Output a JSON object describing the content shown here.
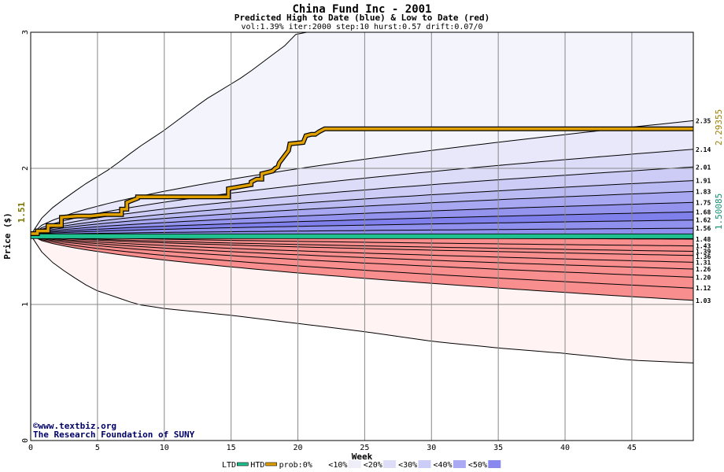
{
  "chart_data": {
    "type": "area",
    "title": "China Fund Inc - 2001",
    "subtitle": "Predicted High to Date (blue) &  Low to Date (red)",
    "params": "vol:1.39% iter:2000 step:10 hurst:0.57 drift:0.07/0",
    "xlabel": "Week",
    "ylabel": "Price ($)",
    "xlim": [
      0,
      49.6
    ],
    "ylim": [
      0,
      3
    ],
    "xticks": [
      "0",
      "5",
      "10",
      "15",
      "20",
      "25",
      "30",
      "35",
      "40",
      "45"
    ],
    "yticks": [
      "0",
      "1",
      "2",
      "3"
    ],
    "grid": true,
    "start_price": 1.51,
    "start_price_label": "1.51",
    "current_high": 2.29355,
    "current_high_label": "2.29355",
    "current_low": 1.50085,
    "current_low_label": "1.50085",
    "high_band_end_labels": [
      "2.35",
      "2.14",
      "2.01",
      "1.91",
      "1.83",
      "1.75",
      "1.68",
      "1.62",
      "1.56"
    ],
    "high_band_end_values": [
      2.35,
      2.14,
      2.01,
      1.91,
      1.83,
      1.75,
      1.68,
      1.62,
      1.56
    ],
    "low_band_end_labels": [
      "1.48",
      "1.43",
      "1.39",
      "1.36",
      "1.31",
      "1.26",
      "1.20",
      "1.12",
      "1.03"
    ],
    "low_band_end_values": [
      1.48,
      1.43,
      1.39,
      1.36,
      1.31,
      1.26,
      1.2,
      1.12,
      1.03
    ],
    "high_outer_envelope": {
      "x": [
        0,
        1,
        2,
        4,
        6,
        8,
        10,
        13,
        16,
        19,
        20,
        25,
        30,
        35,
        40,
        45,
        49.6
      ],
      "y": [
        1.51,
        1.66,
        1.74,
        1.88,
        2.0,
        2.15,
        2.28,
        2.5,
        2.68,
        2.9,
        3.0,
        3.0,
        3.0,
        3.0,
        3.0,
        3.0,
        3.0
      ]
    },
    "low_outer_envelope": {
      "x": [
        0,
        1,
        2,
        4,
        5,
        8,
        10,
        15,
        20,
        25,
        30,
        35,
        40,
        45,
        49.6
      ],
      "y": [
        1.51,
        1.36,
        1.28,
        1.15,
        1.1,
        1.0,
        0.97,
        0.92,
        0.86,
        0.8,
        0.73,
        0.68,
        0.64,
        0.59,
        0.57
      ]
    },
    "htd_series": {
      "name": "HTD",
      "x": [
        0,
        0.5,
        0.5,
        1.3,
        1.3,
        2.3,
        2.3,
        3.5,
        4.5,
        5.5,
        6.8,
        6.8,
        7.2,
        7.2,
        8,
        8,
        14.8,
        14.8,
        16.5,
        16.5,
        16.9,
        17.1,
        17.3,
        17.3,
        18.1,
        18.3,
        18.5,
        18.6,
        19.3,
        19.4,
        20.4,
        20.6,
        21,
        21.3,
        21.6,
        22,
        49.6
      ],
      "y": [
        1.52,
        1.52,
        1.54,
        1.54,
        1.58,
        1.58,
        1.64,
        1.65,
        1.65,
        1.66,
        1.66,
        1.7,
        1.7,
        1.75,
        1.78,
        1.79,
        1.79,
        1.85,
        1.88,
        1.9,
        1.92,
        1.92,
        1.92,
        1.96,
        1.98,
        2.0,
        2.01,
        2.04,
        2.13,
        2.18,
        2.19,
        2.24,
        2.25,
        2.25,
        2.27,
        2.29,
        2.29
      ]
    },
    "ltd_series": {
      "name": "LTD",
      "x": [
        0,
        49.6
      ],
      "y": [
        1.501,
        1.501
      ]
    },
    "legend": {
      "placement": "bottom",
      "items": [
        {
          "label": "LTD",
          "swatch": "line",
          "color": "#20c090"
        },
        {
          "label": "HTD",
          "swatch": "line",
          "color": "#e0a000"
        },
        {
          "label": "prob:0%",
          "swatch": "fill",
          "color": "#ffffff"
        },
        {
          "label": "<10%",
          "swatch": "fill",
          "color": "#eeeef8"
        },
        {
          "label": "<20%",
          "swatch": "fill",
          "color": "#ddddf8"
        },
        {
          "label": "<30%",
          "swatch": "fill",
          "color": "#ccccf8"
        },
        {
          "label": "<40%",
          "swatch": "fill",
          "color": "#aaaaf4"
        },
        {
          "label": "<50%",
          "swatch": "fill",
          "color": "#8888ee"
        }
      ]
    },
    "colors": {
      "high_bands": [
        "#f4f4fc",
        "#e8e8fa",
        "#dcdcf8",
        "#ccccf6",
        "#bbbbf4",
        "#a8a8f2",
        "#9494ef",
        "#8080ec",
        "#9090ee"
      ],
      "low_bands": [
        "#fff3f3",
        "#ffe6e6",
        "#ffd6d6",
        "#ffc4c4",
        "#ffb0b0",
        "#ff9898",
        "#f88888",
        "#f47c7c",
        "#f88e8e"
      ],
      "ltd": "#20c090",
      "htd": "#e0a000",
      "start_label": "#7a7a00",
      "high_label": "#a08000",
      "low_label": "#109070"
    },
    "credits": [
      "©www.textbiz.org",
      "The Research Foundation of SUNY"
    ]
  }
}
